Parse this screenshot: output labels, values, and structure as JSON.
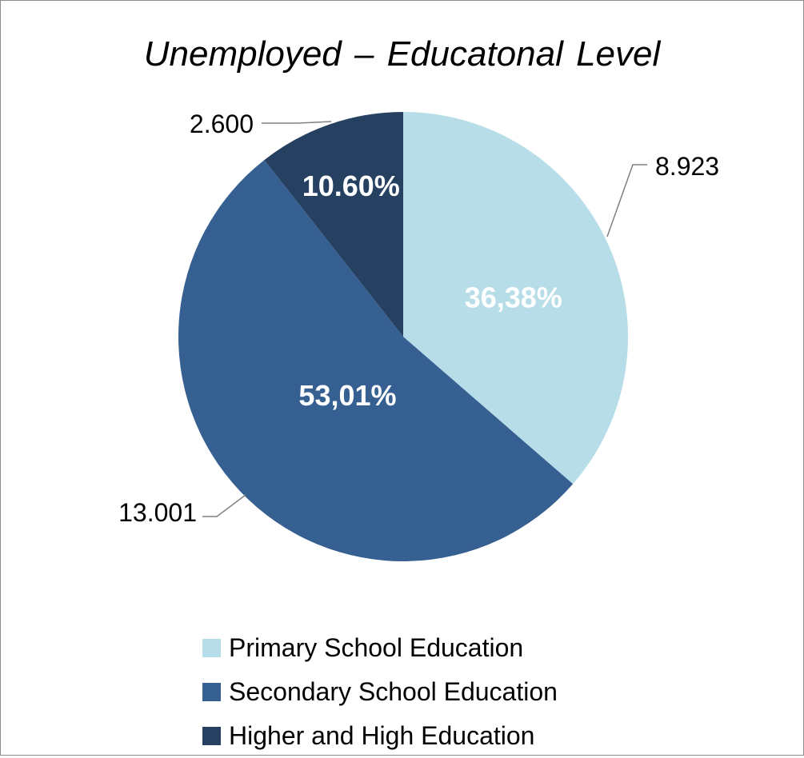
{
  "chart_data": {
    "type": "pie",
    "title": "Unemployed – Educatonal Level",
    "slices": [
      {
        "label": "Primary School Education",
        "value": 8923,
        "value_label": "8.923",
        "percent_label": "36,38%",
        "color": "#b7dde8"
      },
      {
        "label": "Secondary School Education",
        "value": 13001,
        "value_label": "13.001",
        "percent_label": "53,01%",
        "color": "#376092"
      },
      {
        "label": "Higher and High Education",
        "value": 2600,
        "value_label": "2.600",
        "percent_label": "10.60%",
        "color": "#254061"
      }
    ],
    "start_angle": "12 o'clock",
    "direction": "clockwise",
    "legend_position": "bottom"
  }
}
